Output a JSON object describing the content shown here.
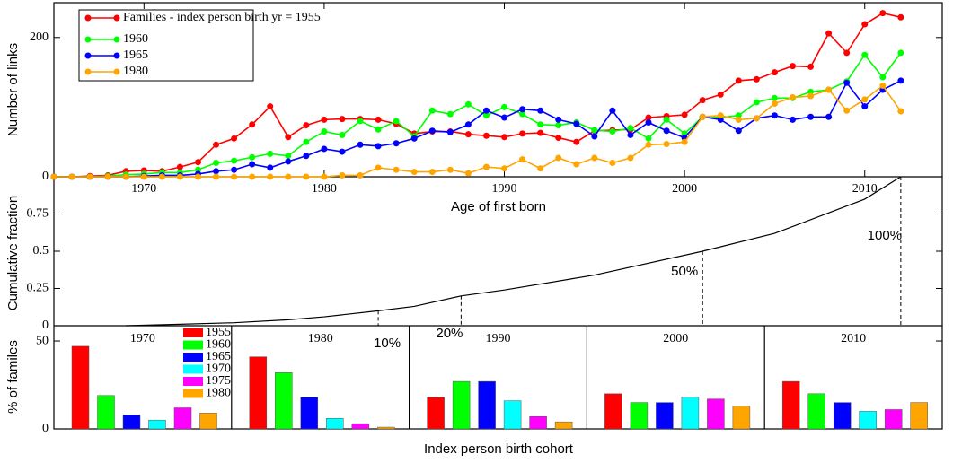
{
  "chart_data": [
    {
      "type": "line",
      "ylabel": "Number of links",
      "xlabel": "Age of first born",
      "x": [
        1965,
        1966,
        1967,
        1968,
        1969,
        1970,
        1971,
        1972,
        1973,
        1974,
        1975,
        1976,
        1977,
        1978,
        1979,
        1980,
        1981,
        1982,
        1983,
        1984,
        1985,
        1986,
        1987,
        1988,
        1989,
        1990,
        1991,
        1992,
        1993,
        1994,
        1995,
        1996,
        1997,
        1998,
        1999,
        2000,
        2001,
        2002,
        2003,
        2004,
        2005,
        2006,
        2007,
        2008,
        2009,
        2010,
        2011,
        2012
      ],
      "xlim": [
        1965,
        2014.3
      ],
      "xticks": [
        1970,
        1980,
        1990,
        2000,
        2010
      ],
      "ylim": [
        0,
        250
      ],
      "yticks": [
        0,
        200
      ],
      "series": [
        {
          "name": "Families - index person birth yr  = 1955",
          "color": "#ff0000",
          "values": [
            0,
            0,
            1,
            2,
            8,
            9,
            8,
            14,
            21,
            46,
            55,
            75,
            101,
            57,
            74,
            82,
            83,
            83,
            82,
            76,
            62,
            65,
            65,
            61,
            59,
            57,
            62,
            63,
            56,
            50,
            66,
            67,
            68,
            85,
            87,
            89,
            110,
            118,
            138,
            140,
            150,
            159,
            158,
            206,
            178,
            219,
            235,
            229
          ]
        },
        {
          "name": "1960",
          "color": "#00ff00",
          "values": [
            0,
            0,
            0,
            1,
            3,
            4,
            6,
            6,
            10,
            20,
            23,
            28,
            33,
            30,
            50,
            65,
            60,
            80,
            68,
            80,
            58,
            95,
            90,
            104,
            88,
            100,
            90,
            75,
            74,
            78,
            67,
            65,
            70,
            55,
            82,
            62,
            86,
            85,
            88,
            107,
            113,
            113,
            122,
            125,
            137,
            175,
            143,
            178
          ]
        },
        {
          "name": "1965",
          "color": "#0000ff",
          "values": [
            0,
            0,
            0,
            0,
            0,
            1,
            2,
            2,
            4,
            8,
            10,
            18,
            13,
            22,
            30,
            40,
            36,
            46,
            44,
            48,
            55,
            66,
            64,
            75,
            95,
            85,
            97,
            95,
            82,
            76,
            58,
            95,
            60,
            78,
            66,
            56,
            86,
            82,
            66,
            84,
            88,
            82,
            86,
            86,
            135,
            101,
            125,
            138
          ]
        },
        {
          "name": "1980",
          "color": "#ffa500",
          "values": [
            0,
            0,
            0,
            0,
            0,
            0,
            0,
            0,
            0,
            0,
            0,
            0,
            0,
            0,
            0,
            0,
            2,
            2,
            13,
            10,
            7,
            7,
            10,
            5,
            14,
            12,
            25,
            12,
            27,
            18,
            27,
            20,
            27,
            46,
            47,
            50,
            86,
            88,
            82,
            84,
            105,
            114,
            116,
            125,
            95,
            111,
            131,
            94
          ]
        }
      ]
    },
    {
      "type": "line",
      "ylabel": "Cumulative fraction",
      "x": [
        1969,
        1972,
        1975,
        1978,
        1980,
        1983,
        1985,
        1987.6,
        1990,
        1995,
        2001,
        2005,
        2010,
        2012
      ],
      "values": [
        0,
        0.01,
        0.02,
        0.04,
        0.06,
        0.1,
        0.13,
        0.2,
        0.24,
        0.34,
        0.5,
        0.62,
        0.85,
        1.0
      ],
      "color": "#000000",
      "xlim": [
        1965,
        2014.3
      ],
      "ylim": [
        0,
        1
      ],
      "yticks": [
        0,
        0.25,
        0.5,
        0.75
      ],
      "annotations": [
        {
          "label": "10%",
          "x": 1983,
          "value": 0.1
        },
        {
          "label": "20%",
          "x": 1987.6,
          "value": 0.2
        },
        {
          "label": "50%",
          "x": 2001,
          "value": 0.5
        },
        {
          "label": "100%",
          "x": 2012,
          "value": 1.0
        }
      ]
    },
    {
      "type": "bar",
      "ylabel": "% of familes",
      "xlabel": "Index person birth cohort",
      "categories": [
        "1970",
        "1980",
        "1990",
        "2000",
        "2010"
      ],
      "ylim": [
        0,
        58.7
      ],
      "yticks": [
        0,
        50
      ],
      "series": [
        {
          "name": "1955",
          "color": "#ff0000",
          "values": [
            47,
            41,
            18,
            20,
            27
          ]
        },
        {
          "name": "1960",
          "color": "#00ff00",
          "values": [
            19,
            32,
            27,
            15,
            20
          ]
        },
        {
          "name": "1965",
          "color": "#0000ff",
          "values": [
            8,
            18,
            27,
            15,
            15
          ]
        },
        {
          "name": "1970",
          "color": "#00ffff",
          "values": [
            5,
            6,
            16,
            18,
            10
          ]
        },
        {
          "name": "1975",
          "color": "#ff00ff",
          "values": [
            12,
            3,
            7,
            17,
            11
          ]
        },
        {
          "name": "1980",
          "color": "#ffa500",
          "values": [
            9,
            1,
            4,
            13,
            15
          ]
        }
      ]
    }
  ]
}
